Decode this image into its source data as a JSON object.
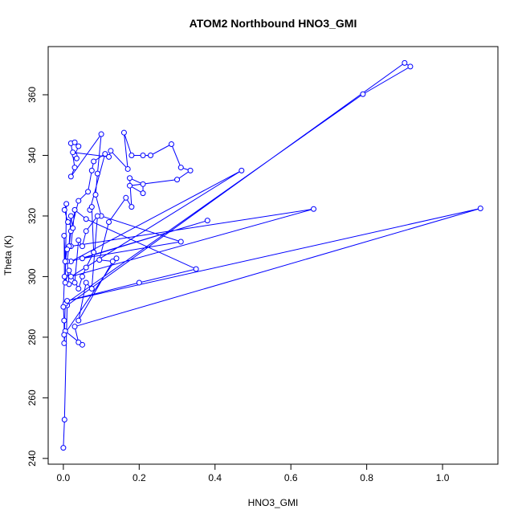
{
  "chart_data": {
    "type": "line",
    "title": "ATOM2 Northbound HNO3_GMI",
    "x_label": "HNO3_GMI",
    "y_label": "Theta (K)",
    "xlim": [
      -0.04,
      1.146
    ],
    "ylim": [
      238.1,
      375.9
    ],
    "xticks": [
      {
        "value": 0,
        "label": "0.0"
      },
      0.2,
      0.4,
      0.6,
      0.8,
      {
        "value": 1,
        "label": "1.0"
      }
    ],
    "yticks": [
      240,
      260,
      280,
      300,
      320,
      340,
      360
    ],
    "grid": false,
    "markers": true,
    "series": [
      {
        "color": "#0000ff",
        "x": [
          0.0,
          0.003,
          0.01,
          0.9,
          0.915,
          0.79,
          0.005,
          0.002,
          0.005,
          0.05,
          0.04,
          0.03,
          1.1,
          0.01,
          0.2,
          0.35,
          0.06,
          0.03,
          0.02,
          0.66,
          0.02,
          0.47,
          0.02,
          0.38,
          0.05,
          0.31,
          0.1,
          0.085,
          0.09,
          0.1,
          0.02,
          0.03,
          0.02,
          0.03,
          0.04,
          0.03,
          0.035,
          0.025,
          0.12,
          0.125,
          0.17,
          0.16,
          0.18,
          0.21,
          0.23,
          0.285,
          0.31,
          0.335,
          0.3,
          0.175,
          0.21,
          0.21,
          0.175,
          0.18,
          0.165,
          0.12,
          0.095,
          0.13,
          0.04,
          0.06,
          0.075,
          0.09,
          0.06,
          0.05,
          0.04,
          0.03,
          0.015,
          0.01,
          0.02,
          0.04,
          0.065,
          0.075,
          0.08,
          0.11,
          0.07,
          0.075,
          0.08,
          0.06,
          0.05,
          0.04,
          0.015,
          0.005,
          0.008,
          0.003,
          0.012,
          0.025,
          0.02,
          0.015,
          0.01,
          0.005,
          0.002,
          0.003,
          0.0,
          0.002,
          0.002,
          0.14
        ],
        "values": [
          243.5,
          252.8,
          290.5,
          370.5,
          369.3,
          360.2,
          291,
          278,
          282,
          277.5,
          278.3,
          283.5,
          322.5,
          292,
          298,
          302.5,
          319,
          322,
          310,
          322.3,
          300,
          335,
          305,
          318.5,
          306,
          311.5,
          320,
          327,
          334,
          347,
          333,
          336,
          344,
          344.3,
          343,
          340,
          339,
          341,
          339.5,
          341.5,
          335.5,
          347.5,
          340,
          340,
          340,
          343.7,
          336,
          335,
          332,
          330,
          327.5,
          330.5,
          332.5,
          323,
          326,
          318,
          305.5,
          305,
          285.5,
          298,
          296,
          320,
          315,
          310,
          312,
          298,
          297.5,
          305,
          315,
          325,
          328,
          335,
          338,
          340.5,
          322,
          323,
          308,
          303,
          300,
          296,
          302,
          298,
          324,
          322,
          318,
          316,
          320,
          310,
          309,
          305,
          313.5,
          300,
          290,
          285.5,
          280.8,
          306
        ]
      }
    ]
  }
}
